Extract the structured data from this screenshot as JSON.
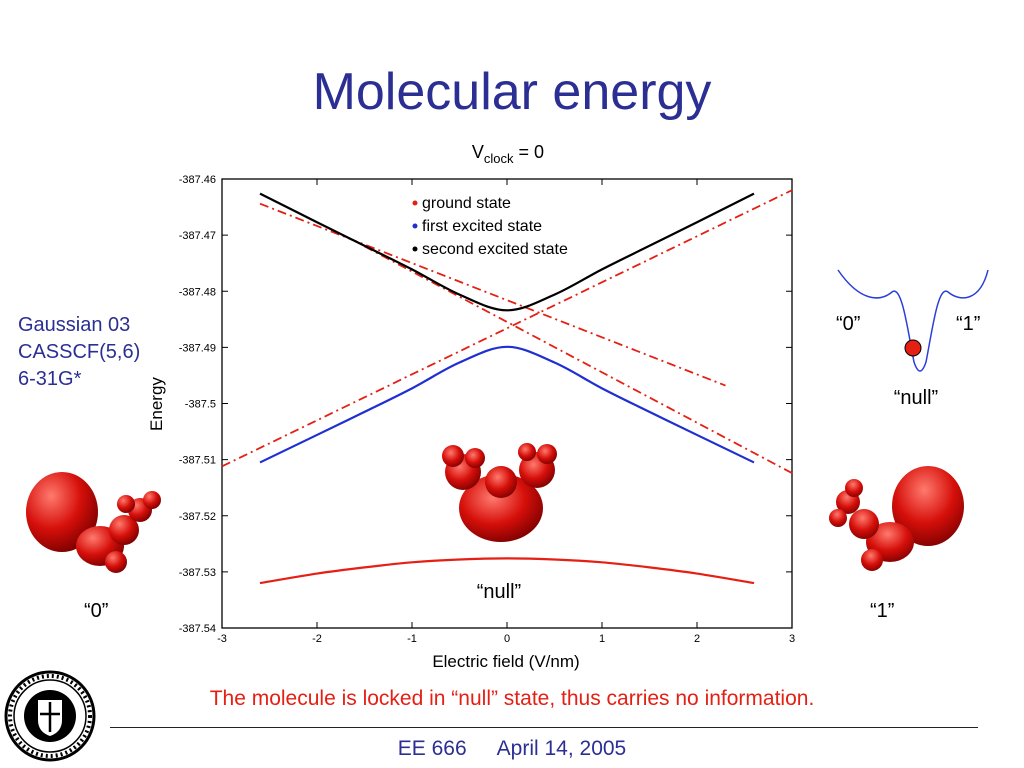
{
  "slide": {
    "title": "Molecular energy",
    "method_lines": [
      "Gaussian 03",
      "CASSCF(5,6)",
      "6-31G*"
    ],
    "caption": "The molecule is locked in “null” state, thus carries no information.",
    "footer_course": "EE 666",
    "footer_date": "April 14, 2005"
  },
  "well_diagram": {
    "label_0": "“0”",
    "label_1": "“1”",
    "label_null": "“null”"
  },
  "molecule_labels": {
    "left": "“0”",
    "center": "“null”",
    "right": "“1”"
  },
  "chart_data": {
    "type": "line",
    "title": "V",
    "title_subscript": "clock",
    "title_suffix": " = 0",
    "xlabel": "Electric field (V/nm)",
    "ylabel": "Energy",
    "xlim": [
      -3,
      3
    ],
    "ylim": [
      -387.54,
      -387.46
    ],
    "xticks": [
      -3,
      -2,
      -1,
      0,
      1,
      2,
      3
    ],
    "yticks": [
      -387.54,
      -387.53,
      -387.52,
      -387.51,
      -387.5,
      -387.49,
      -387.48,
      -387.47,
      -387.46
    ],
    "ytick_labels": [
      "-387.54",
      "-387.53",
      "-387.52",
      "-387.51",
      "-387.5",
      "-387.49",
      "-387.48",
      "-387.47",
      "-387.46"
    ],
    "legend_placement": "top-center",
    "grid": false,
    "x": [
      -2.6,
      -2.0,
      -1.5,
      -1.0,
      -0.5,
      0.0,
      0.5,
      1.0,
      1.5,
      2.0,
      2.6
    ],
    "series": [
      {
        "name": "ground state",
        "color": "#e51f13",
        "style": "solid",
        "values": [
          -387.532,
          -387.5303,
          -387.5292,
          -387.5283,
          -387.5278,
          -387.5276,
          -387.5278,
          -387.5283,
          -387.5292,
          -387.5303,
          -387.532
        ]
      },
      {
        "name": "first excited state",
        "color": "#1f2fd1",
        "style": "solid",
        "values": [
          -387.5105,
          -387.5056,
          -387.5015,
          -387.4973,
          -387.4927,
          -387.4899,
          -387.4927,
          -387.4973,
          -387.5015,
          -387.5056,
          -387.5105
        ]
      },
      {
        "name": "second excited state",
        "color": "#000000",
        "style": "solid",
        "values": [
          -387.4626,
          -387.4677,
          -387.4719,
          -387.4761,
          -387.4806,
          -387.4834,
          -387.4806,
          -387.4761,
          -387.4719,
          -387.4677,
          -387.4626
        ]
      }
    ],
    "diabatic_lines": {
      "color": "#e51f13",
      "style": "dash-dot",
      "lines": [
        {
          "x": [
            -2.6,
            2.3
          ],
          "y": [
            -387.4644,
            -387.4968
          ]
        },
        {
          "x": [
            -3.0,
            3.0
          ],
          "y": [
            -387.5112,
            -387.462
          ]
        },
        {
          "x": [
            -1.5,
            3.0
          ],
          "y": [
            -387.472,
            -387.5124
          ]
        }
      ]
    }
  }
}
